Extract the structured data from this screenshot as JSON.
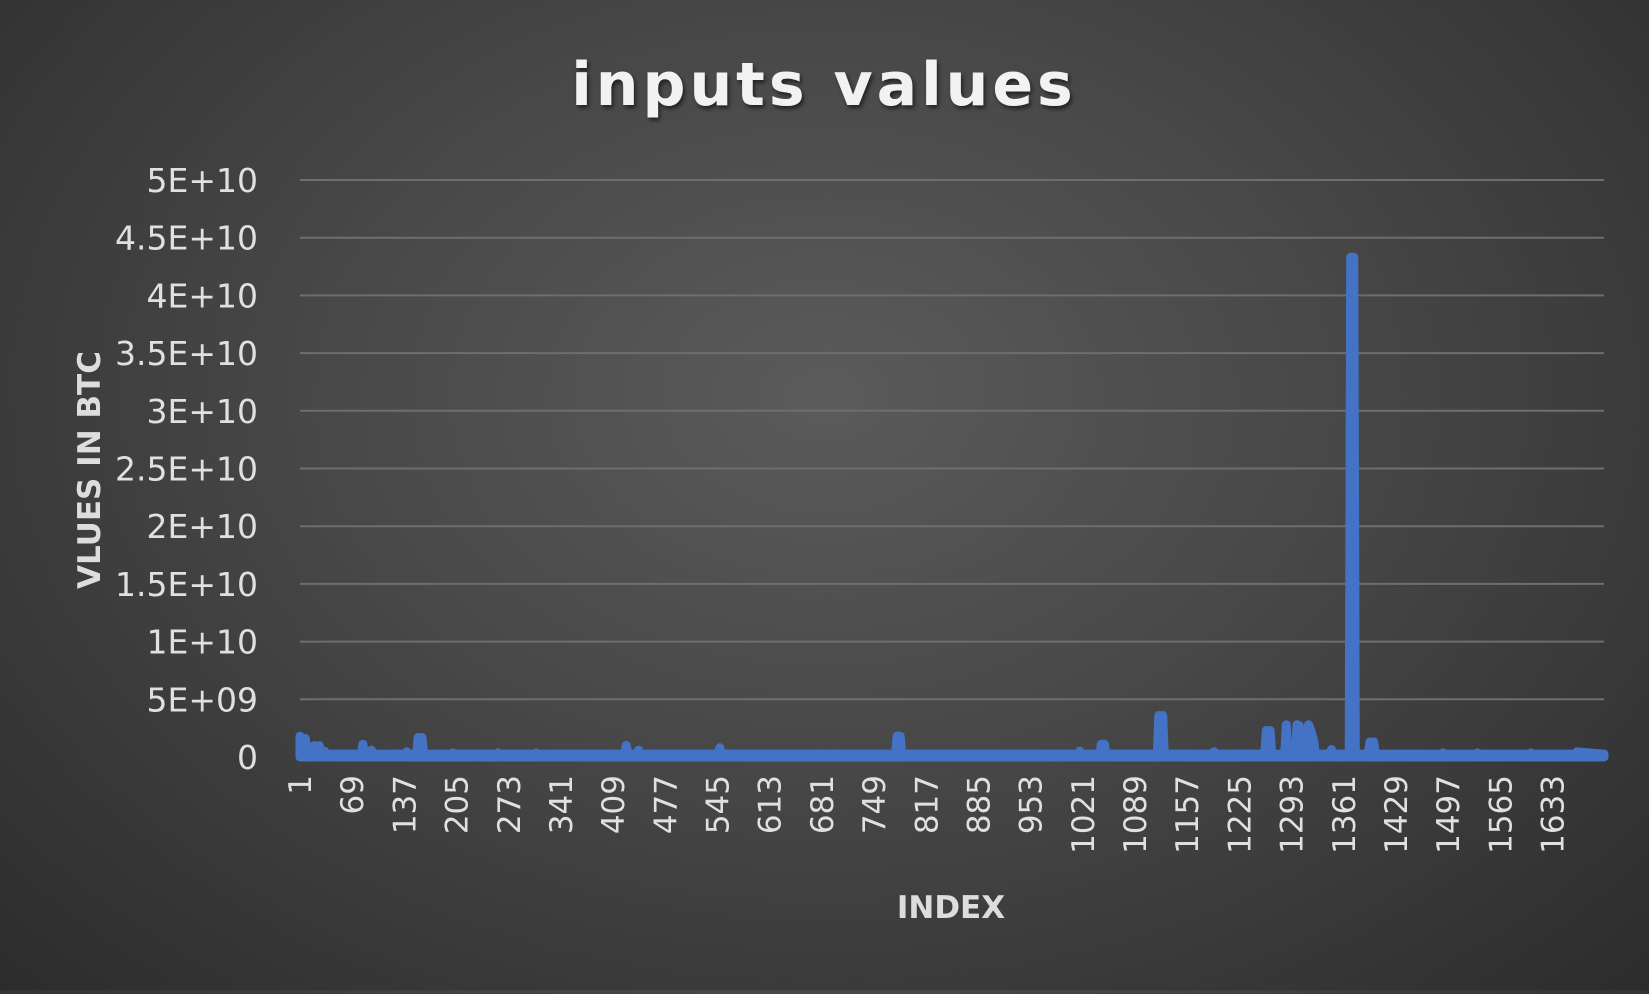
{
  "chart_data": {
    "type": "area",
    "title": "inputs values",
    "xlabel": "INDEX",
    "ylabel": "VLUES IN BTC",
    "ylim": [
      0,
      50000000000
    ],
    "yticks": [
      "0",
      "5E+09",
      "1E+10",
      "1.5E+10",
      "2E+10",
      "2.5E+10",
      "3E+10",
      "3.5E+10",
      "4E+10",
      "4.5E+10",
      "5E+10"
    ],
    "xticks": [
      "1",
      "69",
      "137",
      "205",
      "273",
      "341",
      "409",
      "477",
      "545",
      "613",
      "681",
      "749",
      "817",
      "885",
      "953",
      "1021",
      "1089",
      "1157",
      "1225",
      "1293",
      "1361",
      "1429",
      "1497",
      "1565",
      "1633"
    ],
    "xlim": [
      1,
      1700
    ],
    "grid": true,
    "legend": "none",
    "baseline": 250000000,
    "series": [
      {
        "color": "#4472C4",
        "points": [
          [
            1,
            1800000000
          ],
          [
            8,
            1600000000
          ],
          [
            13,
            900000000
          ],
          [
            20,
            1000000000
          ],
          [
            26,
            1000000000
          ],
          [
            33,
            500000000
          ],
          [
            83,
            1100000000
          ],
          [
            94,
            600000000
          ],
          [
            140,
            450000000
          ],
          [
            155,
            1700000000
          ],
          [
            160,
            1700000000
          ],
          [
            200,
            350000000
          ],
          [
            259,
            350000000
          ],
          [
            309,
            350000000
          ],
          [
            426,
            1000000000
          ],
          [
            442,
            600000000
          ],
          [
            548,
            800000000
          ],
          [
            779,
            1800000000
          ],
          [
            783,
            1800000000
          ],
          [
            1017,
            500000000
          ],
          [
            1045,
            1100000000
          ],
          [
            1049,
            1100000000
          ],
          [
            1120,
            3600000000
          ],
          [
            1125,
            3600000000
          ],
          [
            1192,
            450000000
          ],
          [
            1260,
            2300000000
          ],
          [
            1265,
            2300000000
          ],
          [
            1286,
            2800000000
          ],
          [
            1300,
            2800000000
          ],
          [
            1303,
            2700000000
          ],
          [
            1315,
            2800000000
          ],
          [
            1318,
            2300000000
          ],
          [
            1322,
            1300000000
          ],
          [
            1345,
            650000000
          ],
          [
            1370,
            43300000000
          ],
          [
            1374,
            43300000000
          ],
          [
            1395,
            1300000000
          ],
          [
            1400,
            1300000000
          ],
          [
            1490,
            350000000
          ],
          [
            1535,
            350000000
          ],
          [
            1605,
            350000000
          ],
          [
            1665,
            450000000
          ]
        ]
      }
    ]
  }
}
